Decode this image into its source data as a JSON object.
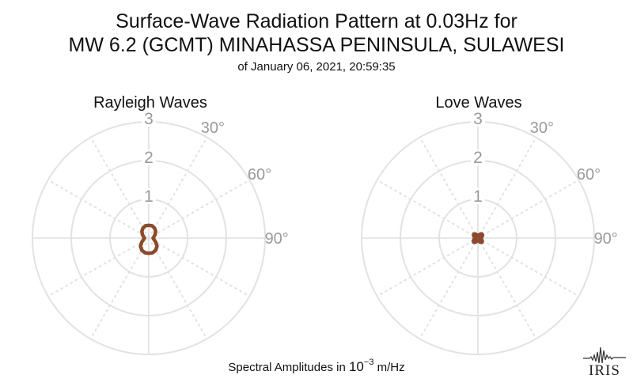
{
  "title_line1": "Surface-Wave Radiation Pattern at 0.03Hz for",
  "title_line2": "MW 6.2 (GCMT) MINAHASSA PENINSULA, SULAWESI",
  "subtitle": "of January 06, 2021, 20:59:35",
  "footer": {
    "prefix": "Spectral Amplitudes in ",
    "base": "10",
    "exponent": "−3",
    "unit": " m/Hz"
  },
  "logo_text": "IRIS",
  "colors": {
    "pattern": "#8B4A2B",
    "grid": "#e2e2e2",
    "label": "#9a9a9a"
  },
  "chart_data": [
    {
      "type": "polar",
      "title": "Rayleigh Waves",
      "radial_ticks": [
        1,
        2,
        3
      ],
      "rlim": [
        0,
        3
      ],
      "angle_ticks_labeled": [
        "30°",
        "60°",
        "90°"
      ],
      "angle_grid_deg": [
        0,
        30,
        60,
        90,
        120,
        150,
        180,
        210,
        240,
        270,
        300,
        330
      ],
      "series": [
        {
          "azimuth_deg": [
            0,
            15,
            30,
            45,
            60,
            75,
            90,
            105,
            120,
            135,
            150,
            165,
            180,
            195,
            210,
            225,
            240,
            255,
            270,
            285,
            300,
            315,
            330,
            345
          ],
          "amplitude": [
            0.33,
            0.33,
            0.3,
            0.25,
            0.19,
            0.14,
            0.11,
            0.14,
            0.21,
            0.3,
            0.36,
            0.39,
            0.39,
            0.39,
            0.36,
            0.3,
            0.21,
            0.14,
            0.11,
            0.14,
            0.19,
            0.25,
            0.3,
            0.33
          ]
        }
      ]
    },
    {
      "type": "polar",
      "title": "Love Waves",
      "radial_ticks": [
        1,
        2,
        3
      ],
      "rlim": [
        0,
        3
      ],
      "angle_ticks_labeled": [
        "30°",
        "60°",
        "90°"
      ],
      "angle_grid_deg": [
        0,
        30,
        60,
        90,
        120,
        150,
        180,
        210,
        240,
        270,
        300,
        330
      ],
      "series": [
        {
          "azimuth_deg": [
            0,
            15,
            30,
            45,
            60,
            75,
            90,
            105,
            120,
            135,
            150,
            165,
            180,
            195,
            210,
            225,
            240,
            255,
            270,
            285,
            300,
            315,
            330,
            345
          ],
          "amplitude": [
            0.05,
            0.07,
            0.12,
            0.15,
            0.14,
            0.1,
            0.06,
            0.09,
            0.13,
            0.15,
            0.12,
            0.08,
            0.05,
            0.07,
            0.12,
            0.15,
            0.14,
            0.1,
            0.06,
            0.09,
            0.13,
            0.15,
            0.12,
            0.08
          ]
        }
      ]
    }
  ]
}
